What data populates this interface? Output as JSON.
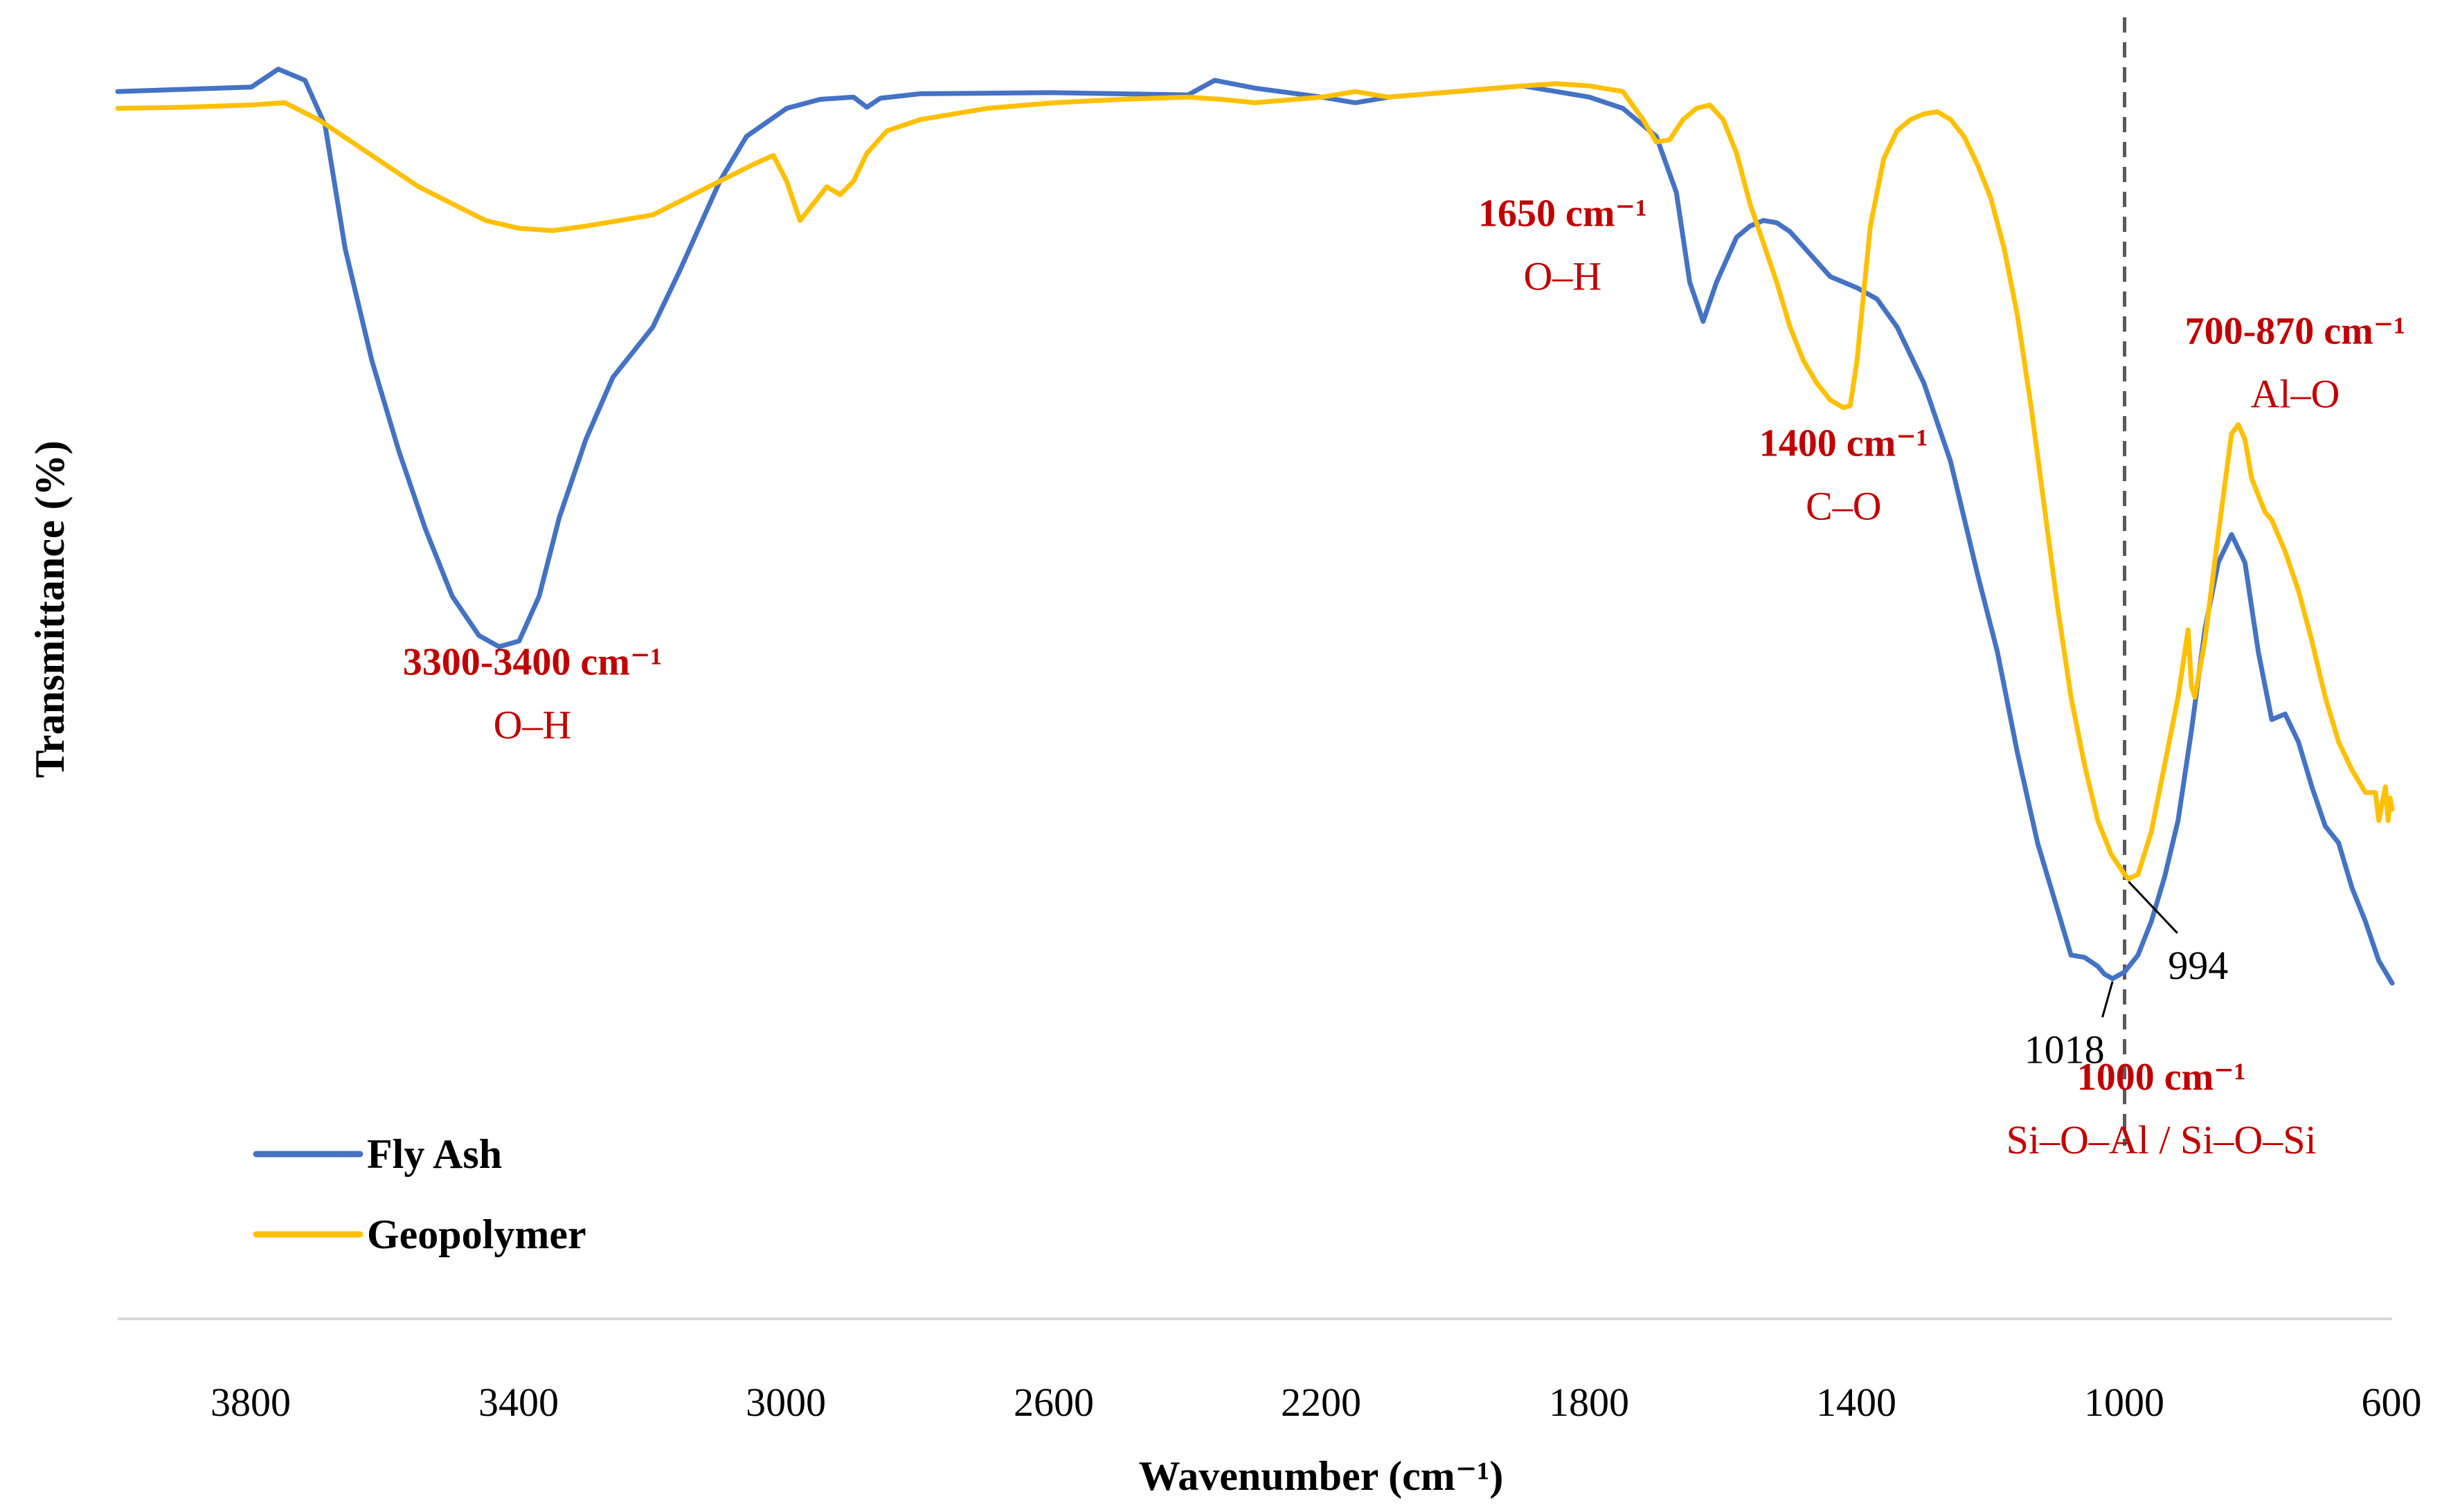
{
  "chart_data": {
    "type": "line",
    "title": "",
    "xlabel": "Wavenumber (cm⁻¹)",
    "ylabel": "Transmittance (%)",
    "xlim": [
      4000,
      600
    ],
    "ylim": [
      0,
      100
    ],
    "x_ticks": [
      3800,
      3400,
      3000,
      2600,
      2200,
      1800,
      1400,
      1000,
      600
    ],
    "x_tick_labels": [
      "3800",
      "3400",
      "3000",
      "2600",
      "2200",
      "1800",
      "1400",
      "1000",
      "600"
    ],
    "grid": false,
    "legend_position": "bottom-left",
    "series": [
      {
        "name": "Fly Ash",
        "color": "#4472c4",
        "points": [
          [
            4000,
            94.0
          ],
          [
            3900,
            94.2
          ],
          [
            3800,
            94.4
          ],
          [
            3760,
            96.0
          ],
          [
            3720,
            95.0
          ],
          [
            3690,
            91.0
          ],
          [
            3660,
            80.0
          ],
          [
            3620,
            70.0
          ],
          [
            3580,
            62.0
          ],
          [
            3540,
            55.0
          ],
          [
            3500,
            49.0
          ],
          [
            3460,
            45.5
          ],
          [
            3430,
            44.5
          ],
          [
            3400,
            45.0
          ],
          [
            3370,
            49.0
          ],
          [
            3340,
            56.0
          ],
          [
            3300,
            63.0
          ],
          [
            3260,
            68.5
          ],
          [
            3200,
            73.0
          ],
          [
            3160,
            78.0
          ],
          [
            3100,
            86.0
          ],
          [
            3060,
            90.0
          ],
          [
            3000,
            92.5
          ],
          [
            2950,
            93.3
          ],
          [
            2900,
            93.5
          ],
          [
            2880,
            92.6
          ],
          [
            2860,
            93.4
          ],
          [
            2800,
            93.8
          ],
          [
            2600,
            93.9
          ],
          [
            2400,
            93.7
          ],
          [
            2360,
            95.0
          ],
          [
            2300,
            94.3
          ],
          [
            2200,
            93.5
          ],
          [
            2150,
            93.0
          ],
          [
            2100,
            93.5
          ],
          [
            2000,
            94.0
          ],
          [
            1900,
            94.5
          ],
          [
            1800,
            93.5
          ],
          [
            1750,
            92.5
          ],
          [
            1700,
            90.0
          ],
          [
            1670,
            85.0
          ],
          [
            1650,
            77.0
          ],
          [
            1630,
            73.5
          ],
          [
            1610,
            77.0
          ],
          [
            1580,
            81.0
          ],
          [
            1560,
            82.0
          ],
          [
            1540,
            82.5
          ],
          [
            1520,
            82.3
          ],
          [
            1500,
            81.5
          ],
          [
            1470,
            79.5
          ],
          [
            1440,
            77.5
          ],
          [
            1420,
            77.0
          ],
          [
            1400,
            76.5
          ],
          [
            1370,
            75.5
          ],
          [
            1340,
            73.0
          ],
          [
            1300,
            68.0
          ],
          [
            1260,
            61.0
          ],
          [
            1220,
            51.0
          ],
          [
            1190,
            44.0
          ],
          [
            1160,
            35.0
          ],
          [
            1130,
            27.0
          ],
          [
            1100,
            21.0
          ],
          [
            1080,
            17.0
          ],
          [
            1060,
            16.8
          ],
          [
            1040,
            16.0
          ],
          [
            1030,
            15.3
          ],
          [
            1018,
            14.9
          ],
          [
            1000,
            15.5
          ],
          [
            980,
            17.0
          ],
          [
            960,
            20.0
          ],
          [
            940,
            24.0
          ],
          [
            920,
            29.0
          ],
          [
            900,
            37.0
          ],
          [
            880,
            46.0
          ],
          [
            860,
            52.0
          ],
          [
            840,
            54.5
          ],
          [
            820,
            52.0
          ],
          [
            800,
            44.0
          ],
          [
            780,
            38.0
          ],
          [
            760,
            38.5
          ],
          [
            740,
            36.0
          ],
          [
            720,
            32.0
          ],
          [
            700,
            28.5
          ],
          [
            680,
            27.0
          ],
          [
            660,
            23.0
          ],
          [
            640,
            20.0
          ],
          [
            620,
            16.5
          ],
          [
            600,
            14.5
          ]
        ]
      },
      {
        "name": "Geopolymer",
        "color": "#ffc000",
        "points": [
          [
            4000,
            92.5
          ],
          [
            3900,
            92.6
          ],
          [
            3800,
            92.8
          ],
          [
            3750,
            93.0
          ],
          [
            3700,
            91.5
          ],
          [
            3650,
            89.5
          ],
          [
            3600,
            87.5
          ],
          [
            3550,
            85.5
          ],
          [
            3500,
            84.0
          ],
          [
            3450,
            82.5
          ],
          [
            3400,
            81.8
          ],
          [
            3350,
            81.6
          ],
          [
            3300,
            82.0
          ],
          [
            3250,
            82.5
          ],
          [
            3200,
            83.0
          ],
          [
            3150,
            84.5
          ],
          [
            3100,
            86.0
          ],
          [
            3050,
            87.5
          ],
          [
            3020,
            88.3
          ],
          [
            3000,
            86.0
          ],
          [
            2980,
            82.5
          ],
          [
            2960,
            84.0
          ],
          [
            2940,
            85.5
          ],
          [
            2920,
            84.8
          ],
          [
            2900,
            86.0
          ],
          [
            2880,
            88.5
          ],
          [
            2850,
            90.5
          ],
          [
            2800,
            91.5
          ],
          [
            2700,
            92.5
          ],
          [
            2600,
            93.0
          ],
          [
            2500,
            93.3
          ],
          [
            2400,
            93.5
          ],
          [
            2350,
            93.3
          ],
          [
            2300,
            93.0
          ],
          [
            2200,
            93.5
          ],
          [
            2150,
            94.0
          ],
          [
            2100,
            93.5
          ],
          [
            2000,
            94.0
          ],
          [
            1900,
            94.5
          ],
          [
            1850,
            94.7
          ],
          [
            1800,
            94.5
          ],
          [
            1750,
            94.0
          ],
          [
            1720,
            91.5
          ],
          [
            1700,
            89.5
          ],
          [
            1680,
            89.7
          ],
          [
            1660,
            91.5
          ],
          [
            1640,
            92.5
          ],
          [
            1620,
            92.8
          ],
          [
            1600,
            91.5
          ],
          [
            1580,
            88.5
          ],
          [
            1560,
            84.0
          ],
          [
            1540,
            80.5
          ],
          [
            1520,
            77.0
          ],
          [
            1500,
            73.0
          ],
          [
            1480,
            70.0
          ],
          [
            1460,
            68.0
          ],
          [
            1440,
            66.5
          ],
          [
            1420,
            65.8
          ],
          [
            1410,
            66.0
          ],
          [
            1400,
            70.0
          ],
          [
            1390,
            76.0
          ],
          [
            1380,
            82.0
          ],
          [
            1360,
            88.0
          ],
          [
            1340,
            90.5
          ],
          [
            1320,
            91.5
          ],
          [
            1300,
            92.0
          ],
          [
            1280,
            92.2
          ],
          [
            1260,
            91.5
          ],
          [
            1240,
            90.0
          ],
          [
            1220,
            87.5
          ],
          [
            1200,
            84.5
          ],
          [
            1180,
            80.0
          ],
          [
            1160,
            74.0
          ],
          [
            1140,
            66.0
          ],
          [
            1120,
            57.0
          ],
          [
            1100,
            48.0
          ],
          [
            1080,
            40.0
          ],
          [
            1060,
            34.0
          ],
          [
            1040,
            29.0
          ],
          [
            1020,
            26.0
          ],
          [
            1000,
            24.2
          ],
          [
            994,
            23.8
          ],
          [
            980,
            24.2
          ],
          [
            960,
            28.0
          ],
          [
            940,
            34.0
          ],
          [
            920,
            40.0
          ],
          [
            910,
            44.0
          ],
          [
            905,
            46.0
          ],
          [
            900,
            41.0
          ],
          [
            895,
            40.0
          ],
          [
            880,
            45.0
          ],
          [
            860,
            54.5
          ],
          [
            840,
            63.5
          ],
          [
            830,
            64.3
          ],
          [
            820,
            63.0
          ],
          [
            810,
            59.5
          ],
          [
            800,
            58.0
          ],
          [
            790,
            56.5
          ],
          [
            780,
            55.8
          ],
          [
            760,
            53.0
          ],
          [
            740,
            49.5
          ],
          [
            720,
            45.0
          ],
          [
            700,
            40.0
          ],
          [
            680,
            36.0
          ],
          [
            660,
            33.5
          ],
          [
            640,
            31.5
          ],
          [
            625,
            31.5
          ],
          [
            620,
            29.0
          ],
          [
            615,
            30.5
          ],
          [
            610,
            32.0
          ],
          [
            606,
            29.0
          ],
          [
            603,
            31.0
          ],
          [
            600,
            30.0
          ]
        ]
      }
    ],
    "reference_lines": [
      {
        "x": 1000,
        "style": "dashed",
        "color": "#595959"
      }
    ],
    "annotations": [
      {
        "id": "oh-broad",
        "x": 3380,
        "y": 42.0,
        "title": "3300-3400 cm⁻¹",
        "subtitle": "O–H"
      },
      {
        "id": "oh-1650",
        "x": 1840,
        "y": 82.0,
        "title": "1650 cm⁻¹",
        "subtitle": "O–H"
      },
      {
        "id": "co-1400",
        "x": 1420,
        "y": 61.5,
        "title": "1400 cm⁻¹",
        "subtitle": "C–O"
      },
      {
        "id": "alo",
        "x": 745,
        "y": 71.5,
        "title": "700-870 cm⁻¹",
        "subtitle": "Al–O"
      },
      {
        "id": "sioal",
        "x": 945,
        "y": 5.0,
        "title": "1000 cm⁻¹",
        "subtitle": "Si–O–Al / Si–O–Si"
      }
    ],
    "peak_labels": [
      {
        "label": "1018",
        "x": 1018,
        "y": 14.9,
        "text_x": 1090,
        "text_y": 8.5
      },
      {
        "label": "994",
        "x": 994,
        "y": 23.8,
        "text_x": 890,
        "text_y": 16.0
      }
    ]
  }
}
